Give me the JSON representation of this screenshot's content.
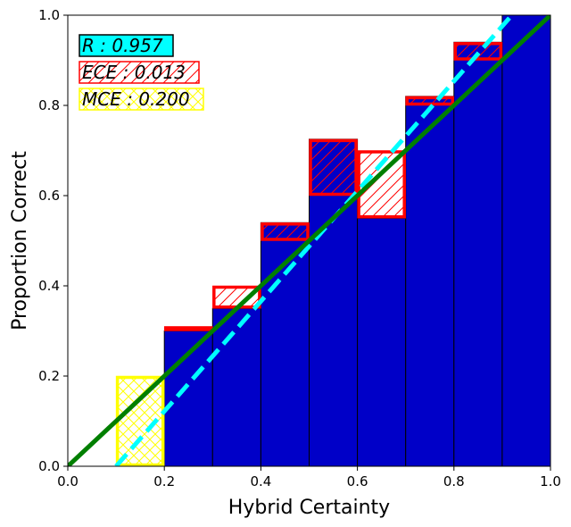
{
  "chart_data": {
    "type": "bar",
    "xlabel": "Hybrid Certainty",
    "ylabel": "Proportion Correct",
    "xlim": [
      0,
      1
    ],
    "ylim": [
      0,
      1
    ],
    "xticks": [
      "0.0",
      "0.2",
      "0.4",
      "0.6",
      "0.8",
      "1.0"
    ],
    "yticks": [
      "0.0",
      "0.2",
      "0.4",
      "0.6",
      "0.8",
      "1.0"
    ],
    "grid": false,
    "bin_width": 0.1,
    "bins": [
      {
        "x": 0.1,
        "accuracy": null,
        "expected": 0.2
      },
      {
        "x": 0.2,
        "accuracy": 0.3,
        "expected": 0.31
      },
      {
        "x": 0.3,
        "accuracy": 0.35,
        "expected": 0.4
      },
      {
        "x": 0.4,
        "accuracy": 0.54,
        "expected": 0.5
      },
      {
        "x": 0.5,
        "accuracy": 0.725,
        "expected": 0.6
      },
      {
        "x": 0.6,
        "accuracy": 0.55,
        "expected": 0.7
      },
      {
        "x": 0.7,
        "accuracy": 0.82,
        "expected": 0.8
      },
      {
        "x": 0.8,
        "accuracy": 0.94,
        "expected": 0.9
      },
      {
        "x": 0.9,
        "accuracy": 1.0,
        "expected": 1.0
      }
    ],
    "identity_line": {
      "from": [
        0,
        0
      ],
      "to": [
        1,
        1
      ],
      "color": "#007f00"
    },
    "fit_line": {
      "from": [
        0.1,
        0.0
      ],
      "to": [
        0.92,
        1.0
      ],
      "color": "#00ffff"
    },
    "legend": {
      "placement": "top-left",
      "entries": [
        {
          "text": "R : 0.957",
          "style": "cyan"
        },
        {
          "text": "ECE : 0.013",
          "style": "red-hatch"
        },
        {
          "text": "MCE : 0.200",
          "style": "yellow-hatch"
        }
      ]
    },
    "colors": {
      "bar_fill": "#0000c8",
      "gap": "#ff0000",
      "max_gap": "#ffff00",
      "identity": "#007f00",
      "fit": "#00ffff",
      "r_box": "#00ffff"
    }
  }
}
